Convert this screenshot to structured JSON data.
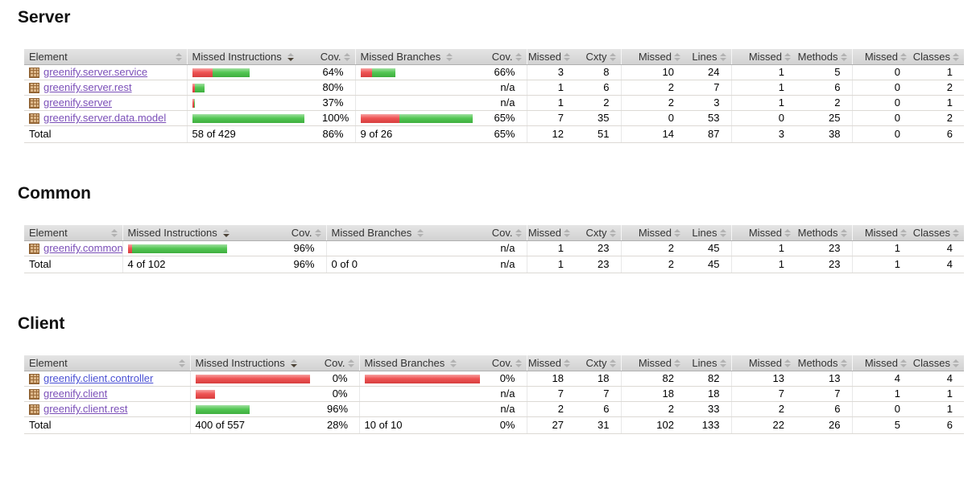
{
  "report": {
    "columns": [
      {
        "key": "element",
        "label": "Element",
        "sorted": false
      },
      {
        "key": "missed-instructions",
        "label": "Missed Instructions",
        "sorted": true
      },
      {
        "key": "instructions-coverage",
        "label": "Cov.",
        "sorted": false
      },
      {
        "key": "missed-branches",
        "label": "Missed Branches",
        "sorted": false
      },
      {
        "key": "branches-coverage",
        "label": "Cov.",
        "sorted": false
      },
      {
        "key": "missed-cxty",
        "label": "Missed",
        "sorted": false
      },
      {
        "key": "cxty",
        "label": "Cxty",
        "sorted": false
      },
      {
        "key": "missed-lines",
        "label": "Missed",
        "sorted": false
      },
      {
        "key": "lines",
        "label": "Lines",
        "sorted": false
      },
      {
        "key": "missed-methods",
        "label": "Missed",
        "sorted": false
      },
      {
        "key": "methods",
        "label": "Methods",
        "sorted": false
      },
      {
        "key": "missed-classes",
        "label": "Missed",
        "sorted": false
      },
      {
        "key": "classes",
        "label": "Classes",
        "sorted": false
      }
    ],
    "colors": {
      "bar_red": "#ee4545",
      "bar_green": "#45c245",
      "link_visited": "#7b4fb8",
      "link_unvisited": "#4a50d4",
      "header_text": "#333333"
    },
    "icons": {
      "package_icon": "tan grid package box",
      "sort_icon": "up-down gray arrows",
      "sort_icon_active": "up-down arrows with dark down arrow"
    },
    "sections": [
      {
        "title": "Server",
        "rows": [
          {
            "package": "greenify.server.service",
            "visited": true,
            "instr_bar": {
              "red": 25,
              "green": 46
            },
            "instr_cov": "64%",
            "branch_bar": {
              "red": 14,
              "green": 29
            },
            "branch_cov": "66%",
            "counters": [
              "3",
              "8",
              "10",
              "24",
              "1",
              "5",
              "0",
              "1"
            ]
          },
          {
            "package": "greenify.server.rest",
            "visited": true,
            "instr_bar": {
              "red": 3,
              "green": 12
            },
            "instr_cov": "80%",
            "branch_bar": {
              "red": 0,
              "green": 0
            },
            "branch_cov": "n/a",
            "counters": [
              "1",
              "6",
              "2",
              "7",
              "1",
              "6",
              "0",
              "2"
            ]
          },
          {
            "package": "greenify.server",
            "visited": true,
            "instr_bar": {
              "red": 2,
              "green": 1
            },
            "instr_cov": "37%",
            "branch_bar": {
              "red": 0,
              "green": 0
            },
            "branch_cov": "n/a",
            "counters": [
              "1",
              "2",
              "2",
              "3",
              "1",
              "2",
              "0",
              "1"
            ]
          },
          {
            "package": "greenify.server.data.model",
            "visited": true,
            "instr_bar": {
              "red": 0,
              "green": 139
            },
            "instr_cov": "100%",
            "branch_bar": {
              "red": 48,
              "green": 91
            },
            "branch_cov": "65%",
            "counters": [
              "7",
              "35",
              "0",
              "53",
              "0",
              "25",
              "0",
              "2"
            ]
          }
        ],
        "total": {
          "label": "Total",
          "instructions": "58 of 429",
          "instr_cov": "86%",
          "branches": "9 of 26",
          "branch_cov": "65%",
          "counters": [
            "12",
            "51",
            "14",
            "87",
            "3",
            "38",
            "0",
            "6"
          ]
        }
      },
      {
        "title": "Common",
        "rows": [
          {
            "package": "greenify.common",
            "visited": true,
            "instr_bar": {
              "red": 5,
              "green": 118
            },
            "instr_cov": "96%",
            "branch_bar": {
              "red": 0,
              "green": 0
            },
            "branch_cov": "n/a",
            "counters": [
              "1",
              "23",
              "2",
              "45",
              "1",
              "23",
              "1",
              "4"
            ]
          }
        ],
        "total": {
          "label": "Total",
          "instructions": "4 of 102",
          "instr_cov": "96%",
          "branches": "0 of 0",
          "branch_cov": "n/a",
          "counters": [
            "1",
            "23",
            "2",
            "45",
            "1",
            "23",
            "1",
            "4"
          ]
        }
      },
      {
        "title": "Client",
        "rows": [
          {
            "package": "greenify.client.controller",
            "visited": false,
            "instr_bar": {
              "red": 142,
              "green": 0
            },
            "instr_cov": "0%",
            "branch_bar": {
              "red": 143,
              "green": 0
            },
            "branch_cov": "0%",
            "counters": [
              "18",
              "18",
              "82",
              "82",
              "13",
              "13",
              "4",
              "4"
            ]
          },
          {
            "package": "greenify.client",
            "visited": true,
            "instr_bar": {
              "red": 24,
              "green": 0
            },
            "instr_cov": "0%",
            "branch_bar": {
              "red": 0,
              "green": 0
            },
            "branch_cov": "n/a",
            "counters": [
              "7",
              "7",
              "18",
              "18",
              "7",
              "7",
              "1",
              "1"
            ]
          },
          {
            "package": "greenify.client.rest",
            "visited": true,
            "instr_bar": {
              "red": 0,
              "green": 67
            },
            "instr_cov": "96%",
            "branch_bar": {
              "red": 0,
              "green": 0
            },
            "branch_cov": "n/a",
            "counters": [
              "2",
              "6",
              "2",
              "33",
              "2",
              "6",
              "0",
              "1"
            ]
          }
        ],
        "total": {
          "label": "Total",
          "instructions": "400 of 557",
          "instr_cov": "28%",
          "branches": "10 of 10",
          "branch_cov": "0%",
          "counters": [
            "27",
            "31",
            "102",
            "133",
            "22",
            "26",
            "5",
            "6"
          ]
        }
      }
    ]
  }
}
